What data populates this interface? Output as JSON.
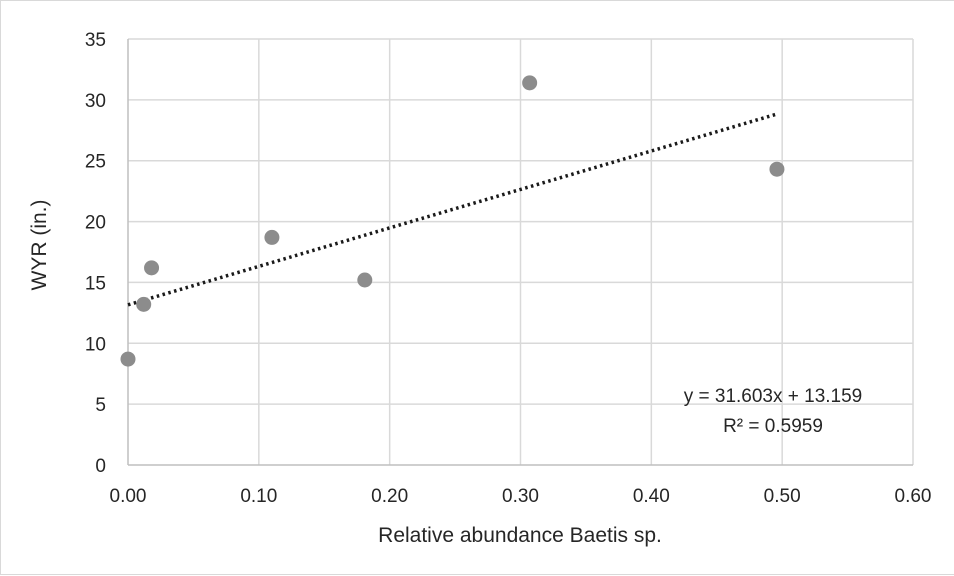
{
  "chart_data": {
    "type": "scatter",
    "title": "",
    "xlabel": "Relative abundance Baetis sp.",
    "ylabel": "WYR (in.)",
    "xlim": [
      0,
      0.6
    ],
    "ylim": [
      0,
      35
    ],
    "x_ticks": [
      0,
      0.1,
      0.2,
      0.3,
      0.4,
      0.5,
      0.6
    ],
    "x_tick_labels": [
      "0.00",
      "0.10",
      "0.20",
      "0.30",
      "0.40",
      "0.50",
      "0.60"
    ],
    "y_ticks": [
      0,
      5,
      10,
      15,
      20,
      25,
      30,
      35
    ],
    "y_tick_labels": [
      "0",
      "5",
      "10",
      "15",
      "20",
      "25",
      "30",
      "35"
    ],
    "grid": true,
    "series": [
      {
        "points": [
          {
            "x": 0.0,
            "y": 8.7
          },
          {
            "x": 0.012,
            "y": 13.2
          },
          {
            "x": 0.018,
            "y": 16.2
          },
          {
            "x": 0.11,
            "y": 18.7
          },
          {
            "x": 0.181,
            "y": 15.2
          },
          {
            "x": 0.307,
            "y": 31.4
          },
          {
            "x": 0.496,
            "y": 24.3
          }
        ],
        "color": "#8c8c8c"
      }
    ],
    "trendline": {
      "slope": 31.603,
      "intercept": 13.159,
      "x_range": [
        0,
        0.496
      ],
      "style": "dotted",
      "color": "#1a1a1a",
      "equation_label": "y = 31.603x + 13.159",
      "r2_label": "R² = 0.5959"
    }
  }
}
